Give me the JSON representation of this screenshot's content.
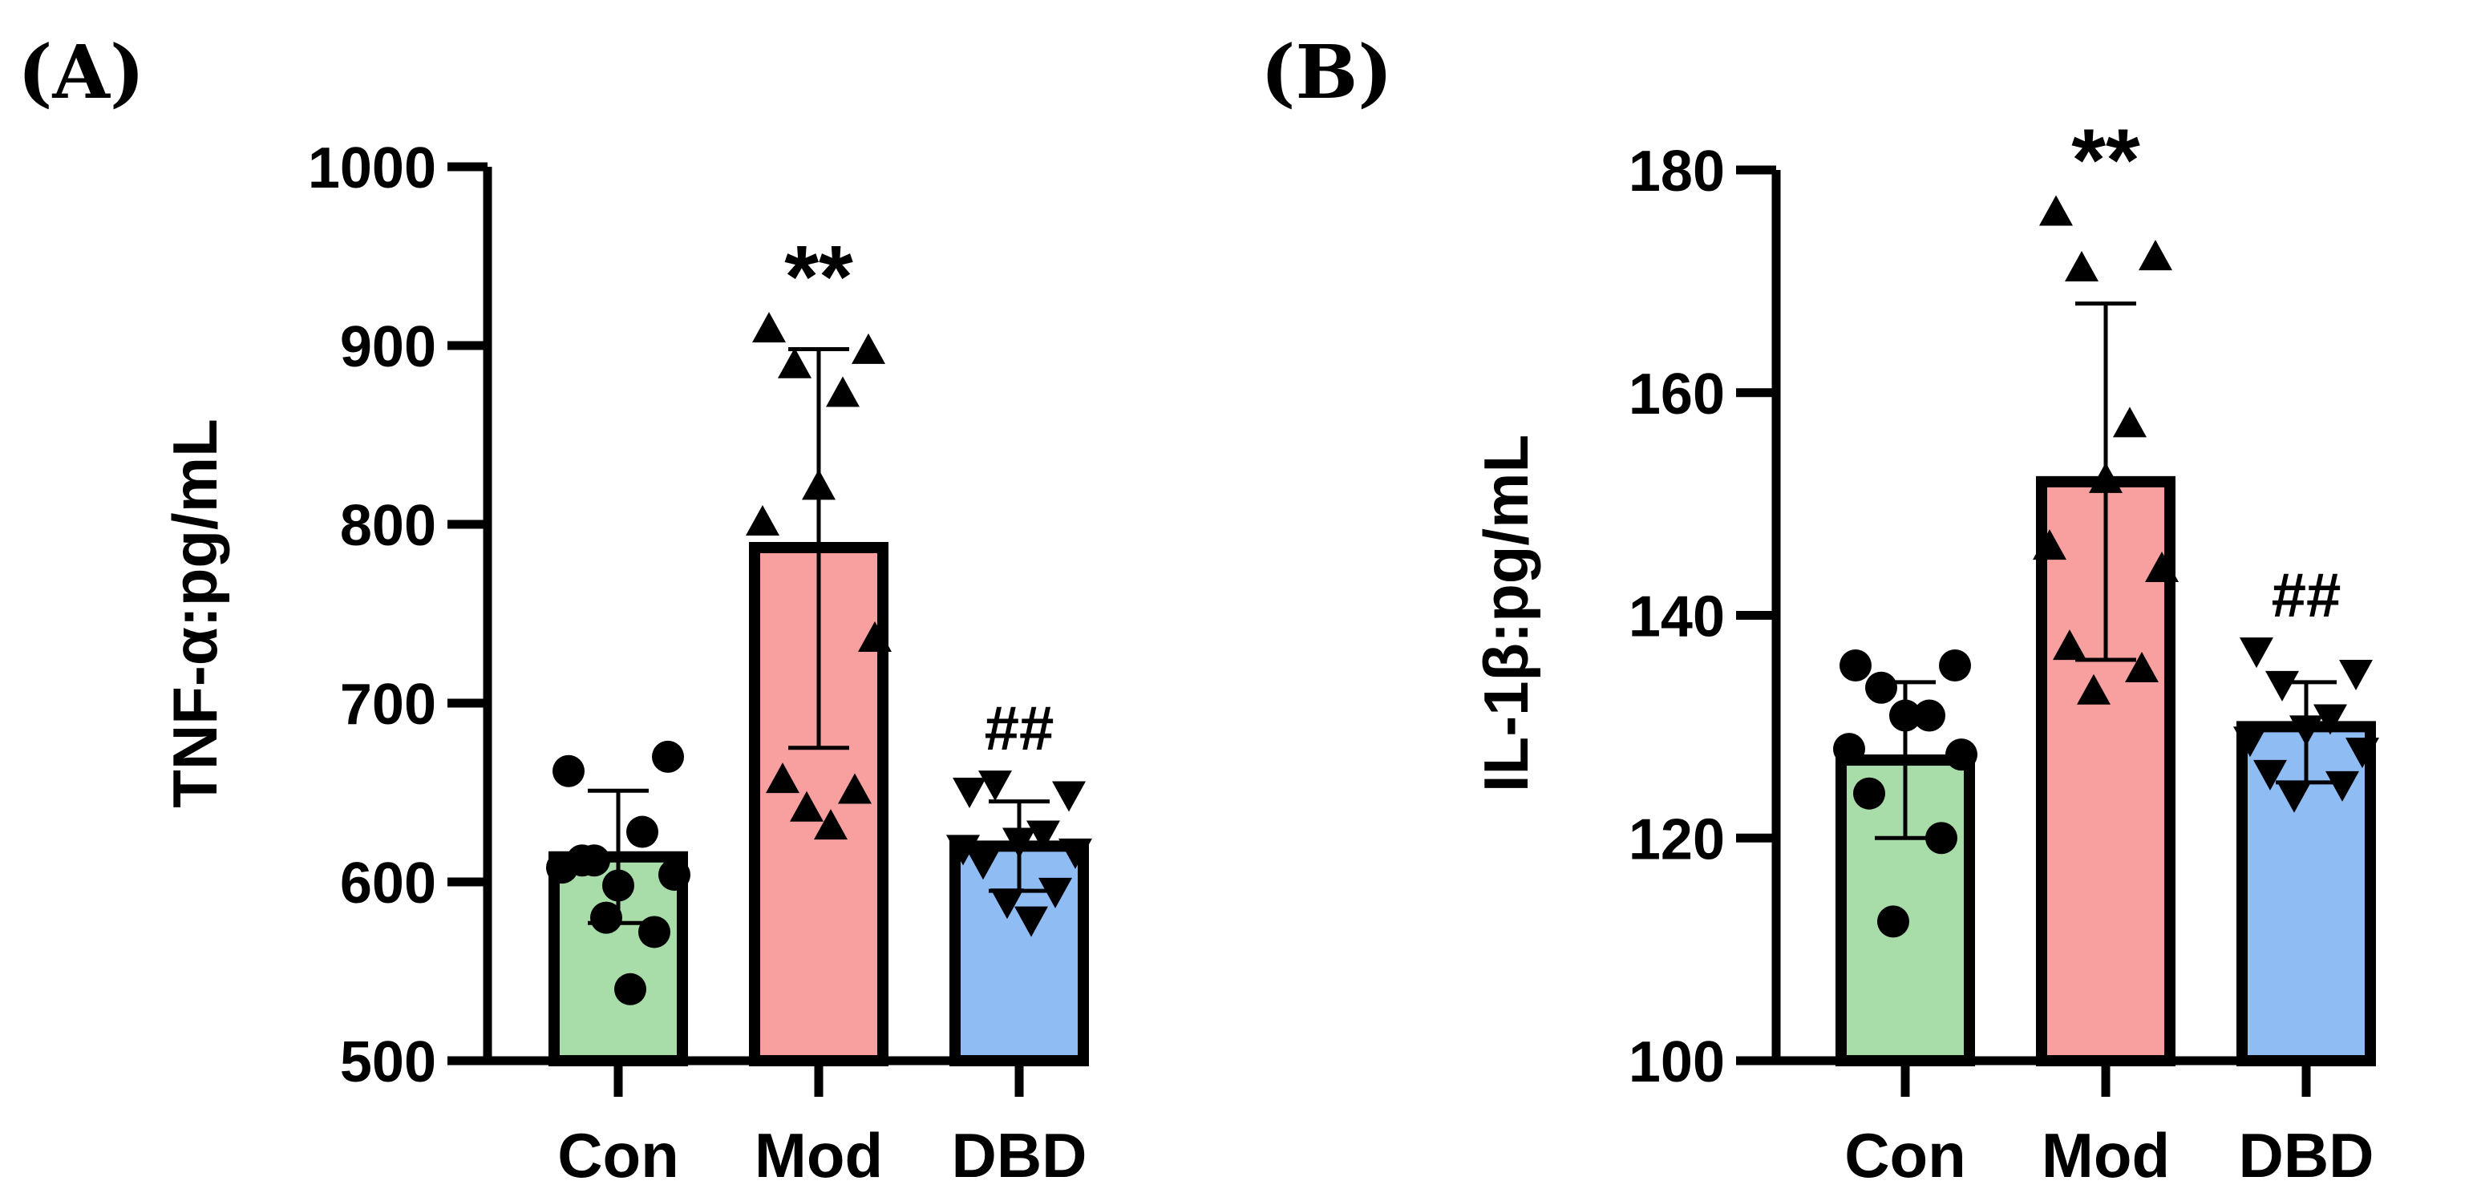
{
  "chart_data": [
    {
      "type": "bar",
      "panel_label": "(A)",
      "ylabel": "TNF-α:pg/mL",
      "ylim": [
        500,
        1000
      ],
      "yticks": [
        500,
        600,
        700,
        800,
        900,
        1000
      ],
      "categories": [
        "Con",
        "Mod",
        "DBD"
      ],
      "bar_colors": [
        "#a8dca8",
        "#f8a0a0",
        "#90bcf4"
      ],
      "values": [
        614,
        787,
        620
      ],
      "error": [
        [
          577,
          651
        ],
        [
          675,
          898
        ],
        [
          595,
          645
        ]
      ],
      "points": [
        {
          "marker": "circle",
          "values": [
            662,
            670,
            612,
            628,
            598,
            608,
            604,
            612,
            572,
            580,
            540
          ]
        },
        {
          "marker": "triangle",
          "values": [
            908,
            896,
            888,
            872,
            820,
            800,
            735,
            656,
            650,
            640,
            630
          ]
        },
        {
          "marker": "triangle-down",
          "values": [
            652,
            650,
            656,
            628,
            624,
            620,
            618,
            612,
            596,
            590,
            580
          ]
        }
      ],
      "annotations": [
        "",
        "**",
        "##"
      ]
    },
    {
      "type": "bar",
      "panel_label": "(B)",
      "ylabel": "IL-1β:pg/mL",
      "ylim": [
        100,
        180
      ],
      "yticks": [
        100,
        120,
        140,
        160,
        180
      ],
      "categories": [
        "Con",
        "Mod",
        "DBD"
      ],
      "bar_colors": [
        "#a8dca8",
        "#f8a0a0",
        "#90bcf4"
      ],
      "values": [
        127,
        152,
        130
      ],
      "error": [
        [
          120,
          134
        ],
        [
          136,
          168
        ],
        [
          125,
          134
        ]
      ],
      "points": [
        {
          "marker": "circle",
          "values": [
            135.5,
            135.5,
            133.5,
            131,
            131,
            128,
            127.5,
            124,
            120,
            112.5
          ]
        },
        {
          "marker": "triangle",
          "values": [
            176,
            172,
            171,
            157,
            152,
            146,
            144,
            137,
            135,
            133
          ]
        },
        {
          "marker": "triangle-down",
          "values": [
            137,
            135,
            134,
            131,
            130,
            129,
            128,
            126,
            125,
            124
          ]
        }
      ],
      "annotations": [
        "",
        "**",
        "##"
      ]
    }
  ]
}
